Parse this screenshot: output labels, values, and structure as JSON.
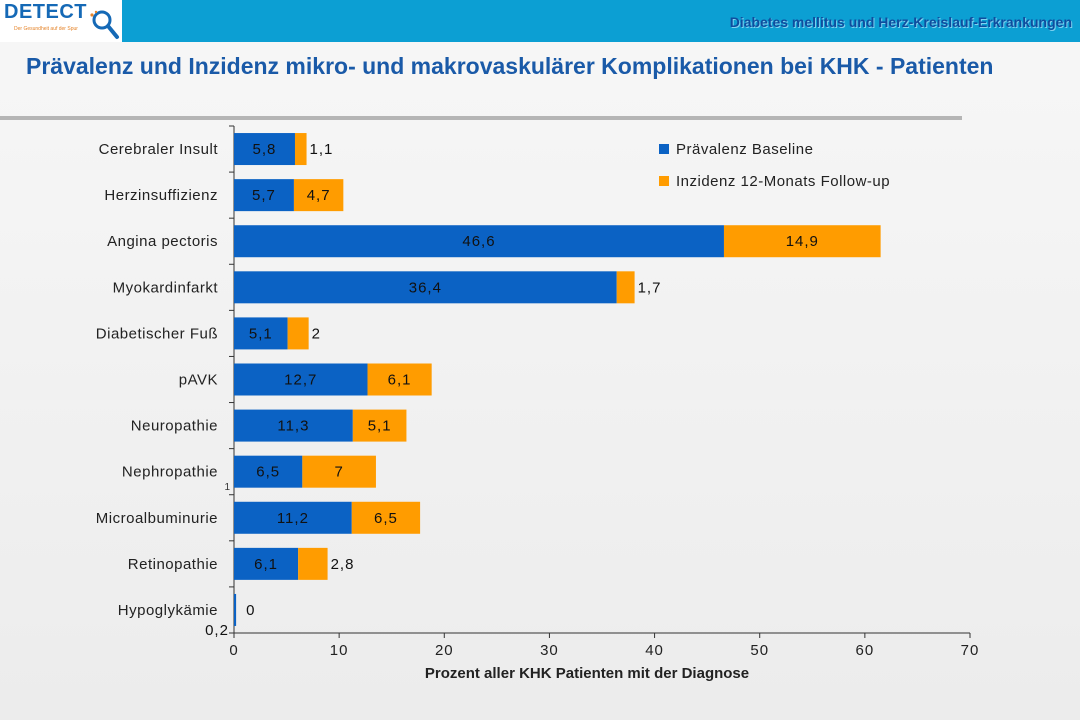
{
  "header": {
    "logo_text": "DETECT",
    "logo_tagline": "Der Gesundheit auf der Spur",
    "topic": "Diabetes mellitus und Herz-Kreislauf-Erkrankungen",
    "accent_color": "#0c9fd3"
  },
  "slide": {
    "title": "Prävalenz und Inzidenz mikro- und makrovaskulärer Komplikationen bei KHK - Patienten"
  },
  "chart_data": {
    "type": "bar",
    "orientation": "horizontal",
    "stacked": true,
    "categories": [
      "Cerebraler Insult",
      "Herzinsuffizienz",
      "Angina pectoris",
      "Myokardinfarkt",
      "Diabetischer Fuß",
      "pAVK",
      "Neuropathie",
      "Nephropathie",
      "Microalbuminurie",
      "Retinopathie",
      "Hypoglykämie"
    ],
    "series": [
      {
        "name": "Prävalenz Baseline",
        "color": "#0b62c4",
        "values": [
          5.8,
          5.7,
          46.6,
          36.4,
          5.1,
          12.7,
          11.3,
          6.5,
          11.2,
          6.1,
          0.2
        ],
        "labels": [
          "5,8",
          "5,7",
          "46,6",
          "36,4",
          "5,1",
          "12,7",
          "11,3",
          "6,5",
          "11,2",
          "6,1",
          "0,2"
        ]
      },
      {
        "name": "Inzidenz 12-Monats Follow-up",
        "color": "#ff9c00",
        "values": [
          1.1,
          4.7,
          14.9,
          1.7,
          2,
          6.1,
          5.1,
          7,
          6.5,
          2.8,
          0
        ],
        "labels": [
          "1,1",
          "4,7",
          "14,9",
          "1,7",
          "2",
          "6,1",
          "5,1",
          "7",
          "6,5",
          "2,8",
          "0"
        ]
      }
    ],
    "xlabel": "Prozent aller KHK Patienten mit der Diagnose",
    "xlim": [
      0,
      70
    ],
    "xticks": [
      0,
      10,
      20,
      30,
      40,
      50,
      60,
      70
    ],
    "grid": false,
    "legend_position": "top-right",
    "stray_mark": "1"
  }
}
